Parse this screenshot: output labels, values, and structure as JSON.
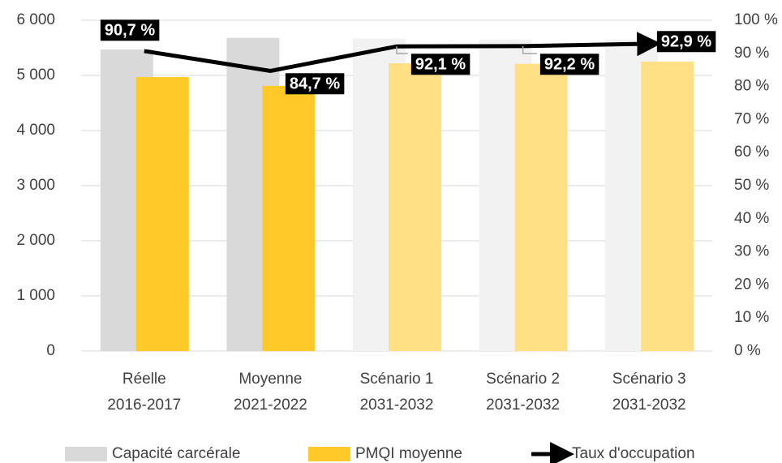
{
  "chart_data": {
    "type": "bar_line",
    "categories": [
      [
        "Réelle",
        "2016-2017"
      ],
      [
        "Moyenne",
        "2021-2022"
      ],
      [
        "Scénario 1",
        "2031-2032"
      ],
      [
        "Scénario 2",
        "2031-2032"
      ],
      [
        "Scénario 3",
        "2031-2032"
      ]
    ],
    "series": [
      {
        "name": "Capacité carcérale",
        "type": "bar",
        "color": "#d9d9d9",
        "colors": [
          "#d9d9d9",
          "#d9d9d9",
          "#f2f2f2",
          "#f2f2f2",
          "#f2f2f2"
        ],
        "values": [
          5470,
          5680,
          5670,
          5650,
          5650
        ]
      },
      {
        "name": "PMQI moyenne",
        "type": "bar",
        "color": "#ffca28",
        "colors": [
          "#ffca28",
          "#ffca28",
          "#ffe084",
          "#ffe084",
          "#ffe084"
        ],
        "values": [
          4970,
          4810,
          5220,
          5210,
          5250
        ]
      },
      {
        "name": "Taux d'occupation",
        "type": "line",
        "axis": "y2",
        "color": "#000000",
        "values": [
          90.7,
          84.7,
          92.1,
          92.2,
          92.9
        ],
        "value_labels": [
          "90,7 %",
          "84,7 %",
          "92,1 %",
          "92,2 %",
          "92,9 %"
        ]
      }
    ],
    "ylim": [
      0,
      6000
    ],
    "yticks": [
      0,
      {
        "value": 1000,
        "label": "1 000"
      },
      {
        "value": 2000,
        "label": "2 000"
      },
      {
        "value": 3000,
        "label": "3 000"
      },
      {
        "value": 4000,
        "label": "4 000"
      },
      {
        "value": 5000,
        "label": "5 000"
      },
      {
        "value": 6000,
        "label": "6 000"
      }
    ],
    "y2lim": [
      0,
      100
    ],
    "y2ticks": [
      {
        "value": 0,
        "label": "0 %"
      },
      {
        "value": 10,
        "label": "10 %"
      },
      {
        "value": 20,
        "label": "20 %"
      },
      {
        "value": 30,
        "label": "30 %"
      },
      {
        "value": 40,
        "label": "40 %"
      },
      {
        "value": 50,
        "label": "50 %"
      },
      {
        "value": 60,
        "label": "60 %"
      },
      {
        "value": 70,
        "label": "70 %"
      },
      {
        "value": 80,
        "label": "80 %"
      },
      {
        "value": 90,
        "label": "90 %"
      },
      {
        "value": 100,
        "label": "100 %"
      }
    ],
    "grid": true
  }
}
